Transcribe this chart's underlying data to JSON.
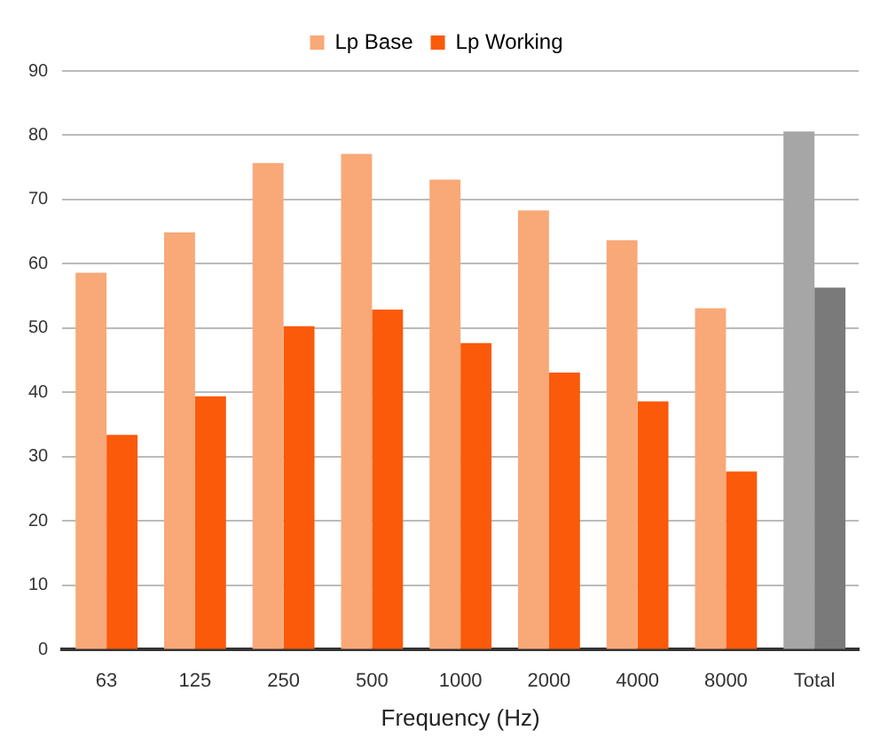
{
  "chart_data": {
    "type": "bar",
    "xlabel": "Frequency (Hz)",
    "categories": [
      "63",
      "125",
      "250",
      "500",
      "1000",
      "2000",
      "4000",
      "8000",
      "Total"
    ],
    "series": [
      {
        "name": "Lp Base",
        "color": "#f9a878",
        "colors": [
          "#f9a878",
          "#f9a878",
          "#f9a878",
          "#f9a878",
          "#f9a878",
          "#f9a878",
          "#f9a878",
          "#f9a878",
          "#a6a6a6"
        ],
        "values": [
          58.6,
          64.9,
          75.7,
          77.1,
          73.1,
          68.3,
          63.7,
          53.1,
          80.6
        ]
      },
      {
        "name": "Lp Working",
        "color": "#fa5a0a",
        "colors": [
          "#fa5a0a",
          "#fa5a0a",
          "#fa5a0a",
          "#fa5a0a",
          "#fa5a0a",
          "#fa5a0a",
          "#fa5a0a",
          "#fa5a0a",
          "#7a7a7a"
        ],
        "values": [
          33.4,
          39.4,
          50.3,
          52.9,
          47.7,
          43.1,
          38.6,
          27.7,
          56.3
        ]
      }
    ],
    "ylim": [
      0,
      90
    ],
    "yticks": [
      0,
      10,
      20,
      30,
      40,
      50,
      60,
      70,
      80,
      90
    ],
    "grid": "y",
    "legend": "top"
  }
}
